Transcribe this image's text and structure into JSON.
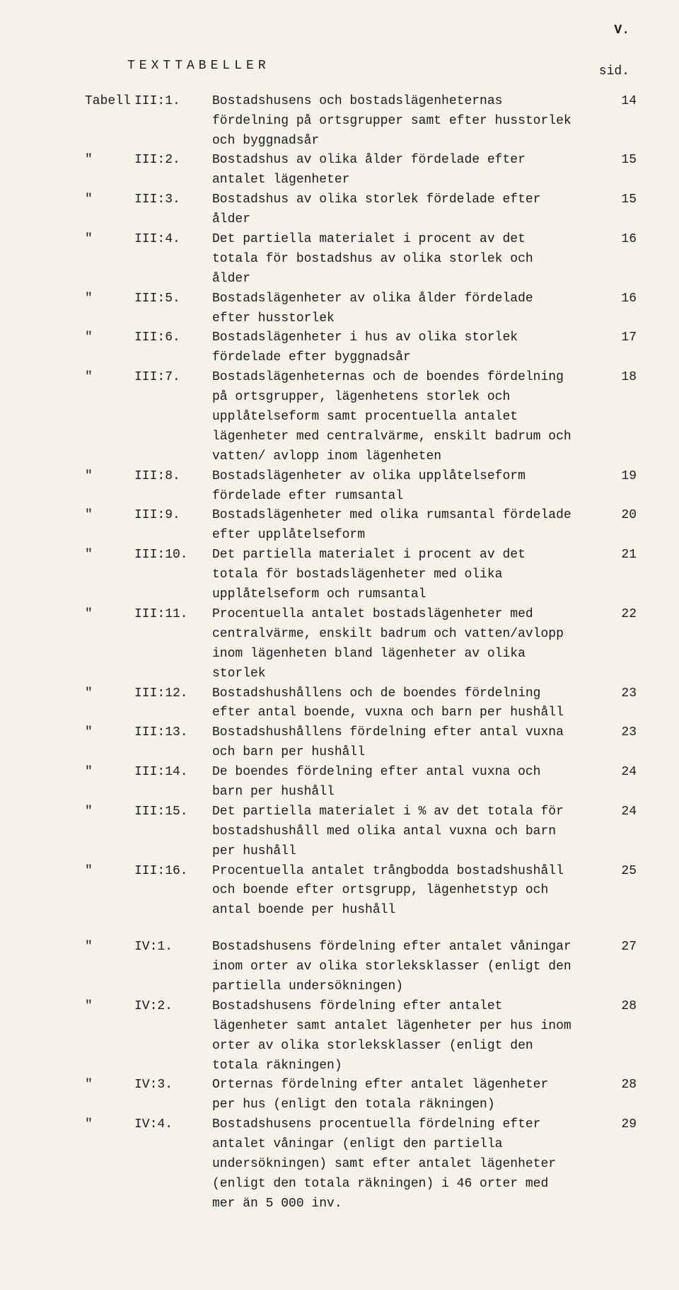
{
  "page_marker": "V.",
  "heading_text": "TEXTTABELLER",
  "sid_label": "sid.",
  "rows": [
    {
      "mark": "Tabell",
      "label": "III:1.",
      "desc": "Bostadshusens och bostadslägenheternas fördelning på orts­grupper samt efter husstorlek och byggnadsår",
      "page": "14"
    },
    {
      "mark": "\"",
      "label": "III:2.",
      "desc": "Bostadshus av olika ålder fördelade efter antalet lägenheter",
      "page": "15"
    },
    {
      "mark": "\"",
      "label": "III:3.",
      "desc": "Bostadshus av olika storlek fördelade efter ålder",
      "page": "15"
    },
    {
      "mark": "\"",
      "label": "III:4.",
      "desc": "Det partiella materialet i procent av det totala för bostads­hus av olika storlek och ålder",
      "page": "16"
    },
    {
      "mark": "\"",
      "label": "III:5.",
      "desc": "Bostadslägenheter av olika ålder fördelade efter husstorlek",
      "page": "16"
    },
    {
      "mark": "\"",
      "label": "III:6.",
      "desc": "Bostadslägenheter i hus av olika storlek fördelade efter bygg­nadsår",
      "page": "17"
    },
    {
      "mark": "\"",
      "label": "III:7.",
      "desc": "Bostadslägenheternas och de boendes fördelning på ortsgrupper, lägenhetens storlek och upplåtelseform samt procentuella an­talet lägenheter med centralvärme, enskilt badrum och vatten/ avlopp inom lägenheten",
      "page": "18"
    },
    {
      "mark": "\"",
      "label": "III:8.",
      "desc": "Bostadslägenheter av olika upplåtelseform fördelade efter rumsantal",
      "page": "19"
    },
    {
      "mark": "\"",
      "label": "III:9.",
      "desc": "Bostadslägenheter med olika rumsantal fördelade efter upp­låtelseform",
      "page": "20"
    },
    {
      "mark": "\"",
      "label": "III:10.",
      "desc": "Det partiella materialet i procent av det totala för bostads­lägenheter med olika upplåtelseform och rumsantal",
      "page": "21"
    },
    {
      "mark": "\"",
      "label": "III:11.",
      "desc": "Procentuella antalet bostadslägenheter med centralvärme, en­skilt badrum och vatten/avlopp inom lägenheten bland lägen­heter av olika storlek",
      "page": "22"
    },
    {
      "mark": "\"",
      "label": "III:12.",
      "desc": "Bostadshushållens och de boendes fördelning efter antal boende, vuxna och barn per hushåll",
      "page": "23"
    },
    {
      "mark": "\"",
      "label": "III:13.",
      "desc": "Bostadshushållens fördelning efter antal vuxna och barn per hushåll",
      "page": "23"
    },
    {
      "mark": "\"",
      "label": "III:14.",
      "desc": "De boendes fördelning efter antal vuxna och barn per hushåll",
      "page": "24"
    },
    {
      "mark": "\"",
      "label": "III:15.",
      "desc": "Det partiella materialet i % av det totala för bostadshushåll med olika antal vuxna och barn per hushåll",
      "page": "24"
    },
    {
      "mark": "\"",
      "label": "III:16.",
      "desc": "Procentuella antalet trångbodda bostadshushåll och boende efter ortsgrupp, lägenhetstyp och antal boende per hushåll",
      "page": "25"
    }
  ],
  "rows2": [
    {
      "mark": "\"",
      "label": "IV:1.",
      "desc": "Bostadshusens fördelning efter antalet våningar inom orter av olika storleksklasser (enligt den partiella undersökningen)",
      "page": "27"
    },
    {
      "mark": "\"",
      "label": "IV:2.",
      "desc": "Bostadshusens fördelning efter antalet lägenheter samt antalet lägenheter per hus inom orter av olika storleksklasser (enligt den totala räkningen)",
      "page": "28"
    },
    {
      "mark": "\"",
      "label": "IV:3.",
      "desc": "Orternas fördelning efter antalet lägenheter per hus (enligt den totala räkningen)",
      "page": "28"
    },
    {
      "mark": "\"",
      "label": "IV:4.",
      "desc": "Bostadshusens procentuella fördelning efter antalet våningar (enligt den partiella undersökningen) samt efter antalet lä­genheter (enligt den totala räkningen) i 46 orter med mer än 5 000 inv.",
      "page": "29"
    }
  ]
}
